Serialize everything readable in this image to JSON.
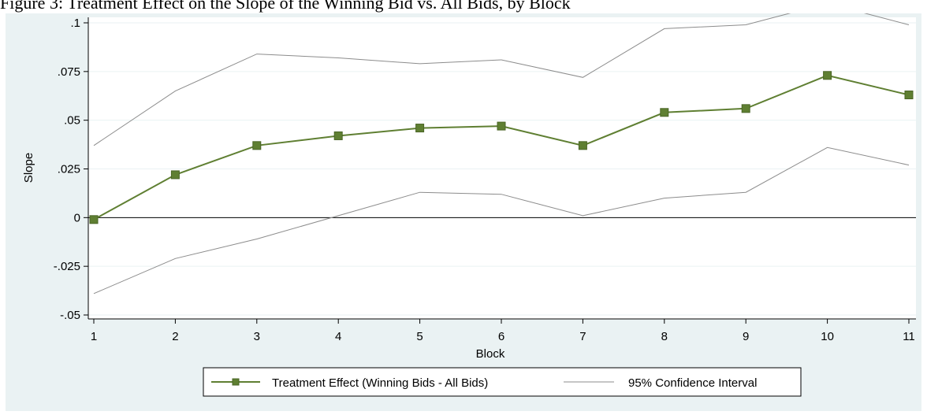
{
  "caption": "Figure 3: Treatment Effect on the Slope of the Winning Bid vs. All Bids, by Block",
  "chart_data": {
    "type": "line",
    "title": "",
    "xlabel": "Block",
    "ylabel": "Slope",
    "x": [
      1,
      2,
      3,
      4,
      5,
      6,
      7,
      8,
      9,
      10,
      11
    ],
    "x_ticks": [
      "1",
      "2",
      "3",
      "4",
      "5",
      "6",
      "7",
      "8",
      "9",
      "10",
      "11"
    ],
    "xlim": [
      1,
      11
    ],
    "ylim": [
      -0.05,
      0.1
    ],
    "y_ticks": [
      {
        "value": -0.05,
        "label": "-.05"
      },
      {
        "value": -0.025,
        "label": "-.025"
      },
      {
        "value": 0,
        "label": "0"
      },
      {
        "value": 0.025,
        "label": ".025"
      },
      {
        "value": 0.05,
        "label": ".05"
      },
      {
        "value": 0.075,
        "label": ".075"
      },
      {
        "value": 0.1,
        "label": ".1"
      }
    ],
    "grid": true,
    "reference_line_y": 0,
    "series": [
      {
        "name": "Treatment Effect (Winning Bids - All Bids)",
        "color": "#5f7f32",
        "marker": "square",
        "values": [
          -0.001,
          0.022,
          0.037,
          0.042,
          0.046,
          0.047,
          0.037,
          0.054,
          0.056,
          0.073,
          0.063
        ]
      },
      {
        "name": "95% Confidence Interval",
        "color": "#8c8c8c",
        "upper": [
          0.037,
          0.065,
          0.084,
          0.082,
          0.079,
          0.081,
          0.072,
          0.097,
          0.099,
          0.11,
          0.099
        ],
        "lower": [
          -0.039,
          -0.021,
          -0.011,
          0.001,
          0.013,
          0.012,
          0.001,
          0.01,
          0.013,
          0.036,
          0.027
        ]
      }
    ],
    "legend_position": "bottom"
  }
}
